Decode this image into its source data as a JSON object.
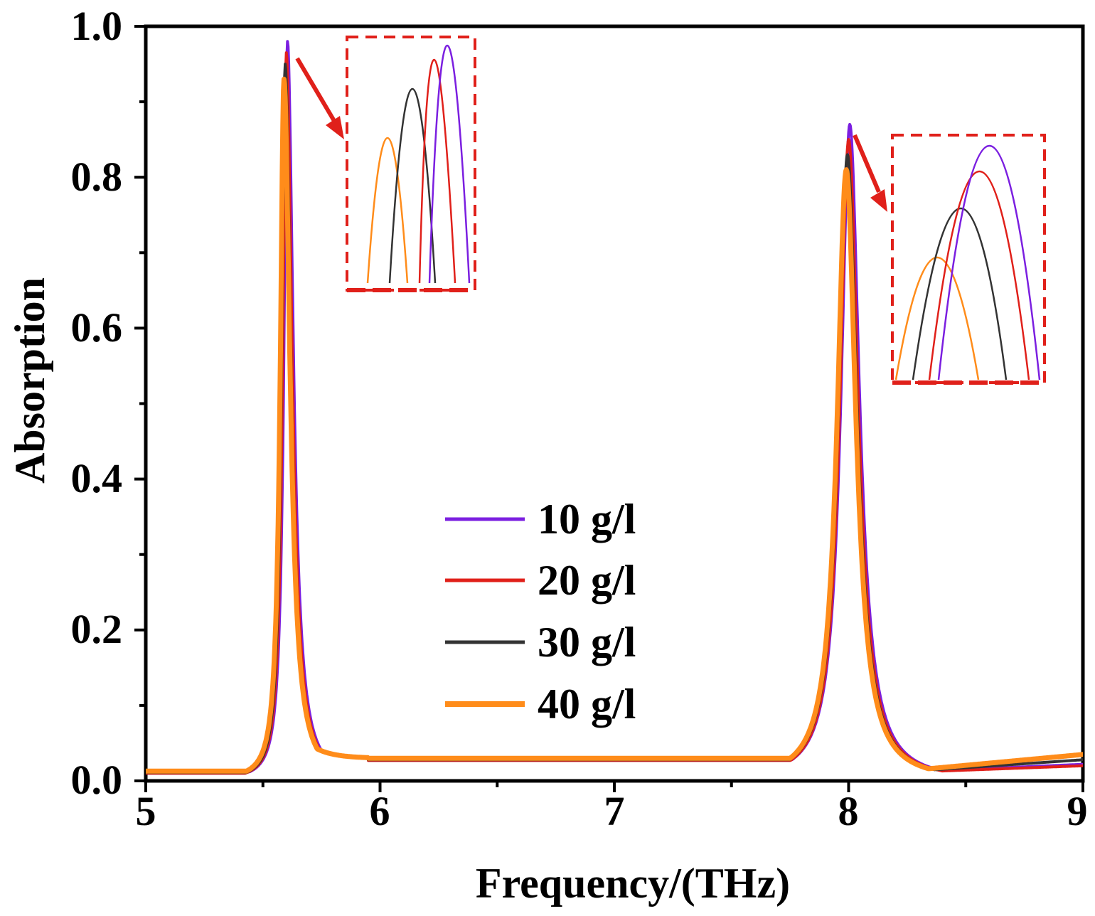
{
  "chart_data": {
    "type": "line",
    "title": "",
    "xlabel": "Frequency/(THz)",
    "ylabel": "Absorption",
    "xlim": [
      5,
      9
    ],
    "ylim": [
      0,
      1.0
    ],
    "x_ticks": [
      5,
      6,
      7,
      8,
      9
    ],
    "x_tick_labels": [
      "5",
      "6",
      "7",
      "8",
      "9"
    ],
    "y_ticks": [
      0,
      0.2,
      0.4,
      0.6,
      0.8,
      1.0
    ],
    "y_tick_labels": [
      "0.0",
      "0.2",
      "0.4",
      "0.6",
      "0.8",
      "1.0"
    ],
    "grid": false,
    "legend_position": "center",
    "series": [
      {
        "name": "10 g/l",
        "color": "#7b1fe0",
        "peaks": [
          {
            "f": 5.605,
            "a": 0.98,
            "hwhm_left": 0.018,
            "hwhm_right": 0.03
          },
          {
            "f": 8.005,
            "a": 0.87,
            "hwhm_left": 0.045,
            "hwhm_right": 0.05
          }
        ],
        "baseline": {
          "low": 0.012,
          "mid": 0.028,
          "end": 0.022
        }
      },
      {
        "name": "20 g/l",
        "color": "#e0201a",
        "peaks": [
          {
            "f": 5.6,
            "a": 0.965,
            "hwhm_left": 0.018,
            "hwhm_right": 0.03
          },
          {
            "f": 8.0,
            "a": 0.85,
            "hwhm_left": 0.045,
            "hwhm_right": 0.05
          }
        ],
        "baseline": {
          "low": 0.01,
          "mid": 0.027,
          "end": 0.02
        }
      },
      {
        "name": "30 g/l",
        "color": "#333333",
        "peaks": [
          {
            "f": 5.595,
            "a": 0.95,
            "hwhm_left": 0.018,
            "hwhm_right": 0.03
          },
          {
            "f": 7.995,
            "a": 0.83,
            "hwhm_left": 0.046,
            "hwhm_right": 0.05
          }
        ],
        "baseline": {
          "low": 0.011,
          "mid": 0.028,
          "end": 0.028
        }
      },
      {
        "name": "40 g/l",
        "color": "#ff8c1a",
        "peaks": [
          {
            "f": 5.59,
            "a": 0.93,
            "hwhm_left": 0.019,
            "hwhm_right": 0.031
          },
          {
            "f": 7.99,
            "a": 0.81,
            "hwhm_left": 0.047,
            "hwhm_right": 0.05
          }
        ],
        "baseline": {
          "low": 0.013,
          "mid": 0.03,
          "end": 0.035
        }
      }
    ],
    "annotations": [
      {
        "type": "inset-zoom",
        "target_peak_x": 5.6,
        "description": "zoom of first peak, dashed red box"
      },
      {
        "type": "inset-zoom",
        "target_peak_x": 8.0,
        "description": "zoom of second peak, dashed red box"
      }
    ]
  },
  "colors": {
    "axis": "#000000",
    "inset_box": "#e0201a",
    "arrow": "#e0201a"
  }
}
